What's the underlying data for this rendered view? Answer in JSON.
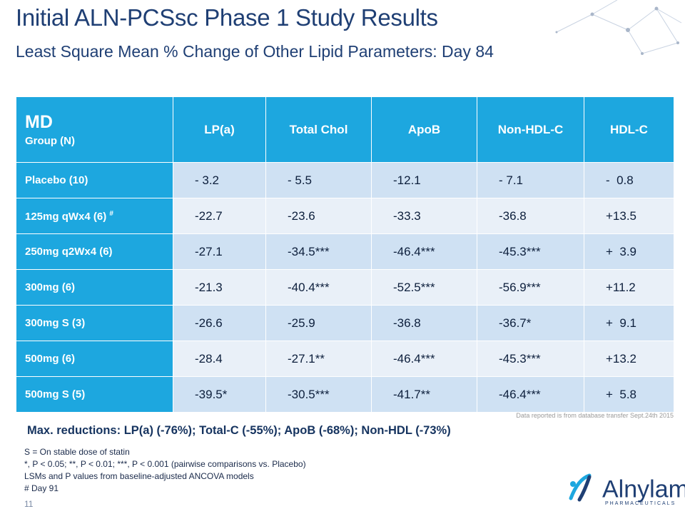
{
  "header": {
    "title": "Initial ALN-PCSsc Phase 1 Study Results",
    "subtitle": "Least Square Mean % Change of Other Lipid Parameters: Day 84"
  },
  "table": {
    "group_label": "MD",
    "group_sublabel": "Group (N)",
    "columns": [
      "LP(a)",
      "Total Chol",
      "ApoB",
      "Non-HDL-C",
      "HDL-C"
    ],
    "rows": [
      {
        "group": "Placebo (10)",
        "footnote_mark": "",
        "values": [
          "- 3.2",
          "- 5.5",
          "-12.1",
          "- 7.1",
          "-  0.8"
        ]
      },
      {
        "group": "125mg qWx4 (6)",
        "footnote_mark": "#",
        "values": [
          "-22.7",
          "-23.6",
          "-33.3",
          "-36.8",
          "+13.5"
        ]
      },
      {
        "group": "250mg q2Wx4 (6)",
        "footnote_mark": "",
        "values": [
          "-27.1",
          "-34.5***",
          "-46.4***",
          "-45.3***",
          "+  3.9"
        ]
      },
      {
        "group": "300mg (6)",
        "footnote_mark": "",
        "values": [
          "-21.3",
          "-40.4***",
          "-52.5***",
          "-56.9***",
          "+11.2"
        ]
      },
      {
        "group": "300mg S (3)",
        "footnote_mark": "",
        "values": [
          "-26.6",
          "-25.9",
          "-36.8",
          "-36.7*",
          "+  9.1"
        ]
      },
      {
        "group": "500mg (6)",
        "footnote_mark": "",
        "values": [
          "-28.4",
          "-27.1**",
          "-46.4***",
          "-45.3***",
          "+13.2"
        ]
      },
      {
        "group": "500mg S (5)",
        "footnote_mark": "",
        "values": [
          "-39.5*",
          "-30.5***",
          "-41.7**",
          "-46.4***",
          "+  5.8"
        ]
      }
    ]
  },
  "source_note": "Data reported is from database transfer Sept.24th 2015",
  "max_reductions": "Max. reductions: LP(a) (-76%); Total-C (-55%); ApoB (-68%); Non-HDL (-73%)",
  "footnotes": [
    "S = On stable dose of statin",
    "*, P < 0.05; **, P < 0.01; ***, P < 0.001 (pairwise comparisons vs. Placebo)",
    "LSMs and P values from baseline-adjusted ANCOVA models",
    "# Day 91"
  ],
  "page_number": "11",
  "logo": {
    "name": "Alnylam",
    "registered": "®",
    "tagline": "PHARMACEUTICALS"
  },
  "colors": {
    "header_bg": "#1da7df",
    "row_dark": "#cfe1f3",
    "row_light": "#e9f0f8",
    "title": "#1f3f74"
  },
  "icons": [
    "network-decoration",
    "alnylam-logo-mark"
  ]
}
